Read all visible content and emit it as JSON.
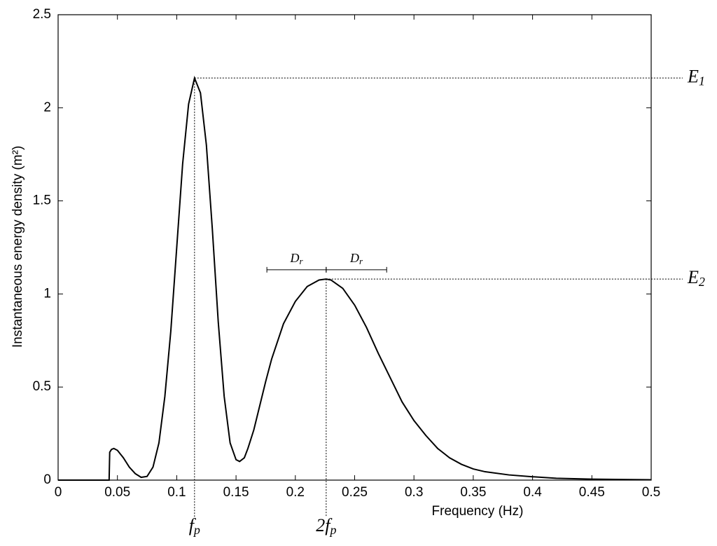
{
  "chart_data": {
    "type": "line",
    "xlabel": "Frequency (Hz)",
    "ylabel": "Instantaneous energy density (m²)",
    "x": [
      0,
      0.02,
      0.043,
      0.0435,
      0.045,
      0.047,
      0.05,
      0.055,
      0.06,
      0.065,
      0.07,
      0.075,
      0.08,
      0.085,
      0.09,
      0.095,
      0.1,
      0.105,
      0.11,
      0.115,
      0.12,
      0.125,
      0.13,
      0.135,
      0.14,
      0.145,
      0.15,
      0.153,
      0.157,
      0.16,
      0.165,
      0.17,
      0.175,
      0.18,
      0.19,
      0.2,
      0.21,
      0.22,
      0.226,
      0.23,
      0.24,
      0.25,
      0.26,
      0.27,
      0.28,
      0.29,
      0.3,
      0.31,
      0.32,
      0.33,
      0.34,
      0.35,
      0.36,
      0.38,
      0.4,
      0.42,
      0.45,
      0.5
    ],
    "values": [
      0,
      0,
      0,
      0.15,
      0.165,
      0.17,
      0.16,
      0.12,
      0.07,
      0.035,
      0.015,
      0.02,
      0.07,
      0.2,
      0.45,
      0.8,
      1.25,
      1.7,
      2.02,
      2.16,
      2.08,
      1.8,
      1.35,
      0.85,
      0.45,
      0.2,
      0.11,
      0.1,
      0.12,
      0.17,
      0.27,
      0.4,
      0.53,
      0.65,
      0.84,
      0.96,
      1.04,
      1.075,
      1.08,
      1.075,
      1.03,
      0.94,
      0.82,
      0.68,
      0.55,
      0.42,
      0.32,
      0.24,
      0.17,
      0.12,
      0.085,
      0.06,
      0.045,
      0.028,
      0.018,
      0.01,
      0.005,
      0.002
    ],
    "color": "#000000",
    "xlim": [
      0,
      0.5
    ],
    "xticks": [
      0,
      0.05,
      0.1,
      0.15,
      0.2,
      0.25,
      0.3,
      0.35,
      0.4,
      0.45,
      0.5
    ],
    "ylim": [
      0,
      2.5
    ],
    "yticks": [
      0,
      0.5,
      1,
      1.5,
      2,
      2.5
    ],
    "grid": false,
    "markers": [
      {
        "x": 0.115,
        "y": 2.16,
        "x_label": {
          "text": "f",
          "sub": "p"
        },
        "y_label": {
          "text": "E",
          "sub": "1"
        }
      },
      {
        "x": 0.226,
        "y": 1.08,
        "x_label": {
          "text": "2f",
          "sub": "p"
        },
        "y_label": {
          "text": "E",
          "sub": "2"
        }
      }
    ],
    "spans": [
      {
        "from": 0.176,
        "to": 0.226,
        "y": 1.13,
        "label": {
          "text": "D",
          "sub": "r"
        }
      },
      {
        "from": 0.226,
        "to": 0.277,
        "y": 1.13,
        "label": {
          "text": "D",
          "sub": "r"
        }
      }
    ]
  }
}
